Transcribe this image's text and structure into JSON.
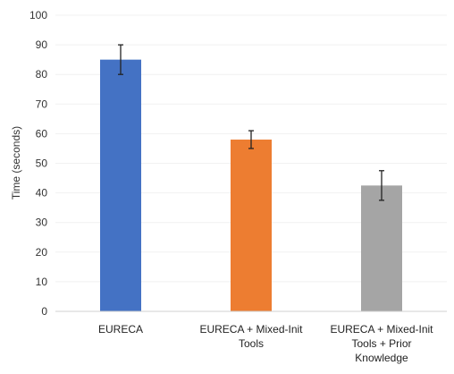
{
  "chart_data": {
    "type": "bar",
    "title": "",
    "xlabel": "",
    "ylabel": "Time (seconds)",
    "ylim": [
      0,
      100
    ],
    "yticks": [
      0,
      10,
      20,
      30,
      40,
      50,
      60,
      70,
      80,
      90,
      100
    ],
    "grid": true,
    "categories": [
      [
        "EURECA"
      ],
      [
        "EURECA + Mixed-Init",
        "Tools"
      ],
      [
        "EURECA + Mixed-Init",
        "Tools + Prior",
        "Knowledge"
      ]
    ],
    "values": [
      85,
      58,
      42.5
    ],
    "errors": [
      5,
      3,
      5
    ],
    "colors": [
      "#4472C4",
      "#ED7D31",
      "#A5A5A5"
    ]
  }
}
